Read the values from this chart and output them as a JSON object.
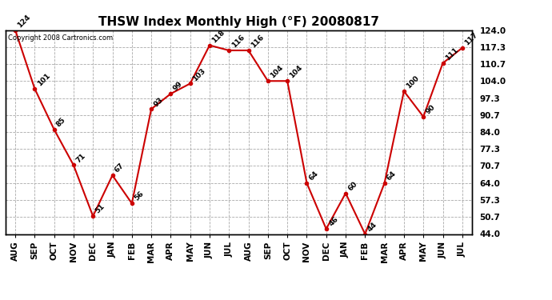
{
  "title": "THSW Index Monthly High (°F) 20080817",
  "copyright": "Copyright 2008 Cartronics.com",
  "months": [
    "AUG",
    "SEP",
    "OCT",
    "NOV",
    "DEC",
    "JAN",
    "FEB",
    "MAR",
    "APR",
    "MAY",
    "JUN",
    "JUL",
    "AUG",
    "SEP",
    "OCT",
    "NOV",
    "DEC",
    "JAN",
    "FEB",
    "MAR",
    "APR",
    "MAY",
    "JUN",
    "JUL"
  ],
  "values": [
    124,
    101,
    85,
    71,
    51,
    67,
    56,
    93,
    99,
    103,
    118,
    116,
    116,
    104,
    104,
    64,
    46,
    60,
    44,
    64,
    100,
    90,
    111,
    117
  ],
  "yticks": [
    44.0,
    50.7,
    57.3,
    64.0,
    70.7,
    77.3,
    84.0,
    90.7,
    97.3,
    104.0,
    110.7,
    117.3,
    124.0
  ],
  "line_color": "#cc0000",
  "marker_color": "#cc0000",
  "bg_color": "#ffffff",
  "grid_color": "#aaaaaa",
  "text_color": "#000000",
  "title_fontsize": 11,
  "label_fontsize": 6.5,
  "tick_fontsize": 7.5,
  "copyright_fontsize": 6,
  "ylim_min": 44.0,
  "ylim_max": 124.0
}
